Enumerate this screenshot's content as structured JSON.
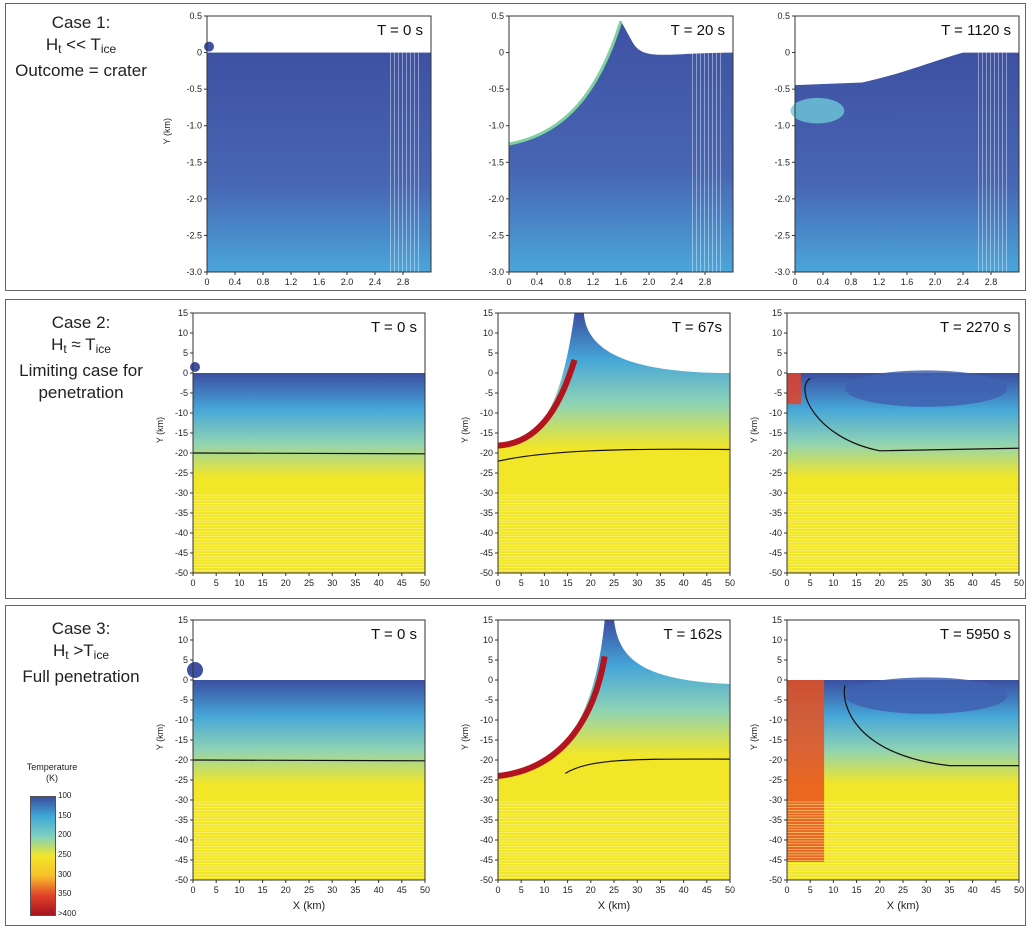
{
  "rows": [
    {
      "id": "case1",
      "label_lines": [
        "Case 1:",
        "H_t << T_ice",
        "Outcome = crater"
      ],
      "label_case": "Case 1:",
      "label_ht": "H",
      "label_ht_sub": "t",
      "label_rel": " << T",
      "label_rel_sub": "ice",
      "label_outcome": "Outcome = crater",
      "ylabel": "Y (km)",
      "xticks": [
        "0",
        "0.4",
        "0.8",
        "1.2",
        "1.6",
        "2.0",
        "2.4",
        "2.8"
      ],
      "yticks": [
        "0.5",
        "0",
        "-0.5",
        "-1.0",
        "-1.5",
        "-2.0",
        "-2.5",
        "-3.0"
      ],
      "panels": [
        {
          "time": "T = 0 s"
        },
        {
          "time": "T = 20 s"
        },
        {
          "time": "T = 1120 s"
        }
      ]
    },
    {
      "id": "case2",
      "label_case": "Case 2:",
      "label_ht": "H",
      "label_ht_sub": "t",
      "label_rel": " ≈ T",
      "label_rel_sub": "ice",
      "label_line3": "Limiting case for",
      "label_line4": "penetration",
      "ylabel": "Y (km)",
      "xticks": [
        "0",
        "5",
        "10",
        "15",
        "20",
        "25",
        "30",
        "35",
        "40",
        "45",
        "50"
      ],
      "yticks": [
        "15",
        "10",
        "5",
        "0",
        "-5",
        "-10",
        "-15",
        "-20",
        "-25",
        "-30",
        "-35",
        "-40",
        "-45",
        "-50"
      ],
      "panels": [
        {
          "time": "T = 0 s"
        },
        {
          "time": "T = 67s"
        },
        {
          "time": "T = 2270 s"
        }
      ]
    },
    {
      "id": "case3",
      "label_case": "Case 3:",
      "label_ht": "H",
      "label_ht_sub": "t",
      "label_rel": " >T",
      "label_rel_sub": "ice",
      "label_line3": "Full penetration",
      "ylabel": "Y (km)",
      "xlabel": "X (km)",
      "xticks": [
        "0",
        "5",
        "10",
        "15",
        "20",
        "25",
        "30",
        "35",
        "40",
        "45",
        "50"
      ],
      "yticks": [
        "15",
        "10",
        "5",
        "0",
        "-5",
        "-10",
        "-15",
        "-20",
        "-25",
        "-30",
        "-35",
        "-40",
        "-45",
        "-50"
      ],
      "panels": [
        {
          "time": "T = 0 s"
        },
        {
          "time": "T = 162s"
        },
        {
          "time": "T = 5950 s"
        }
      ]
    }
  ],
  "colorbar": {
    "title": "Temperature",
    "unit": "(K)",
    "ticks": [
      "100",
      "150",
      "200",
      "250",
      "300",
      "350",
      ">400"
    ],
    "colors": [
      "#3b4ea0",
      "#3fa9d8",
      "#7fd0c0",
      "#f2e629",
      "#f7c02a",
      "#e2432a",
      "#a4131e"
    ]
  }
}
